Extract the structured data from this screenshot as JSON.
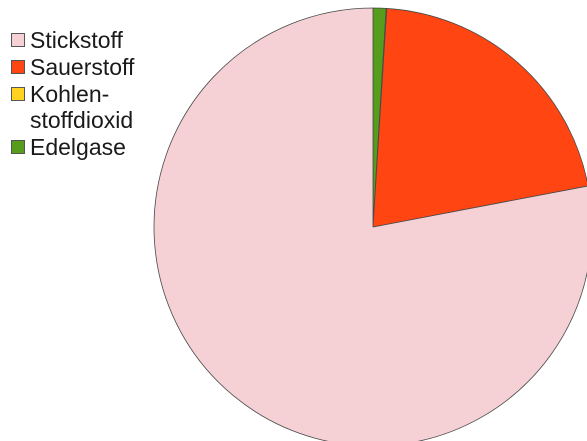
{
  "chart_data": {
    "type": "pie",
    "categories": [
      "Stickstoff",
      "Sauerstoff",
      "Kohlen-\nstoffdioxid",
      "Edelgase"
    ],
    "values": [
      78.0,
      21.0,
      0.04,
      0.96
    ],
    "colors": [
      "#f5d0d5",
      "#ff4511",
      "#ffd320",
      "#579d1c"
    ],
    "start_angle_deg": 0,
    "direction": "clockwise",
    "order_from_top": [
      "Edelgase",
      "Kohlen-\nstoffdioxid",
      "Sauerstoff",
      "Stickstoff"
    ],
    "legend_position": "top-left",
    "title": "",
    "legend": [
      {
        "label": "Stickstoff",
        "color": "#f5d0d5"
      },
      {
        "label": "Sauerstoff",
        "color": "#ff4511"
      },
      {
        "label": "Kohlen-\nstoffdioxid",
        "color": "#ffd320"
      },
      {
        "label": "Edelgase",
        "color": "#579d1c"
      }
    ]
  }
}
